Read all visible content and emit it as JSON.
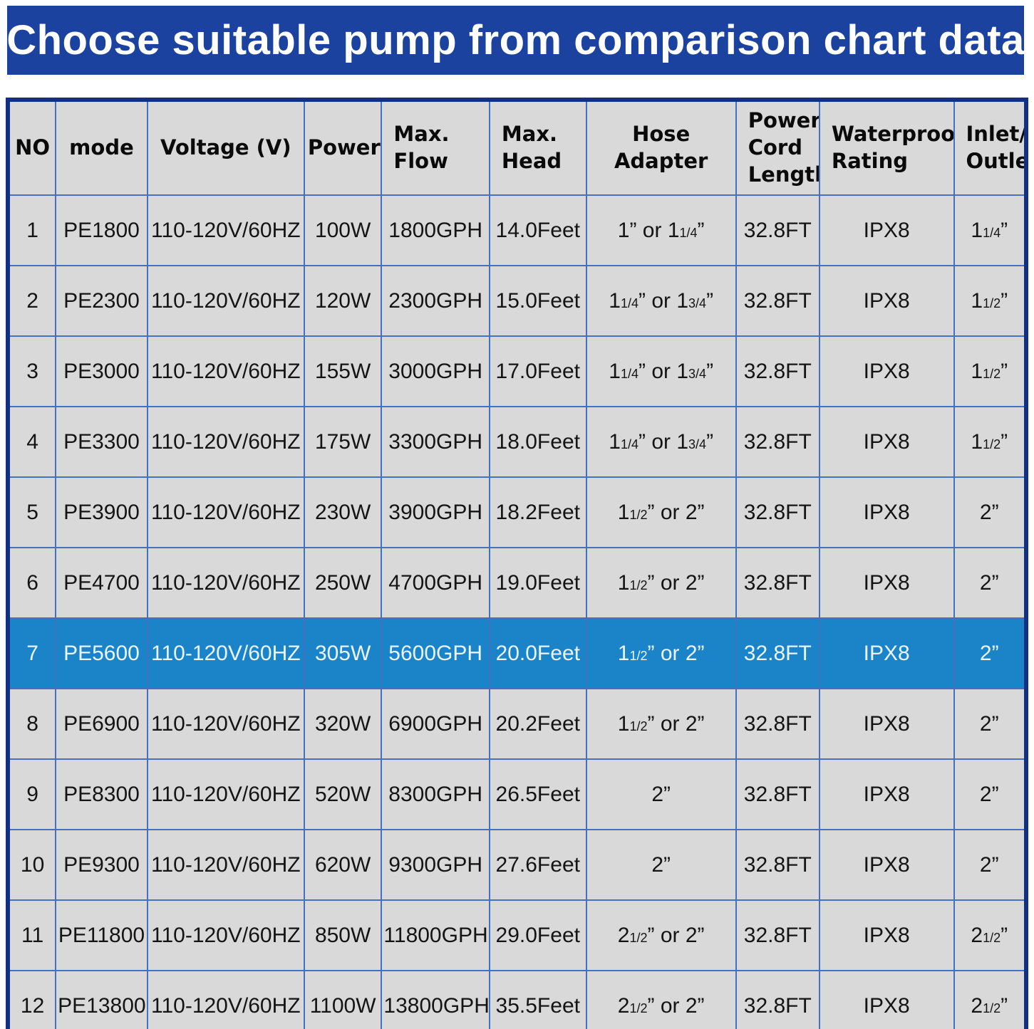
{
  "title": "Choose suitable pump from comparison chart data",
  "colors": {
    "banner_bg": "#1b429e",
    "banner_text": "#ffffff",
    "cell_bg": "#d9d9d9",
    "grid_line": "#4470c0",
    "outer_border": "#122f86",
    "highlight_row_bg": "#1b84c8",
    "highlight_row_text": "#e9f4fc",
    "body_text": "#141414"
  },
  "chart_data": {
    "type": "table",
    "title": "Choose suitable pump from comparison chart data",
    "columns": [
      "NO",
      "mode",
      "Voltage (V)",
      "Power",
      "Max.\nFlow",
      "Max.\nHead",
      "Hose Adapter",
      "Power\nCord\nLength",
      "Waterproof\nRating",
      "Inlet/\nOutlet"
    ],
    "highlighted_row_index": 6,
    "fraction_note": "text in {curly braces} renders as small inline fraction",
    "rows": [
      [
        "1",
        "PE1800",
        "110-120V/60HZ",
        "100W",
        "1800GPH",
        "14.0Feet",
        "1” or 1{1/4}”",
        "32.8FT",
        "IPX8",
        "1{1/4}”"
      ],
      [
        "2",
        "PE2300",
        "110-120V/60HZ",
        "120W",
        "2300GPH",
        "15.0Feet",
        "1{1/4}” or 1{3/4}”",
        "32.8FT",
        "IPX8",
        "1{1/2}”"
      ],
      [
        "3",
        "PE3000",
        "110-120V/60HZ",
        "155W",
        "3000GPH",
        "17.0Feet",
        "1{1/4}” or 1{3/4}”",
        "32.8FT",
        "IPX8",
        "1{1/2}”"
      ],
      [
        "4",
        "PE3300",
        "110-120V/60HZ",
        "175W",
        "3300GPH",
        "18.0Feet",
        "1{1/4}” or 1{3/4}”",
        "32.8FT",
        "IPX8",
        "1{1/2}”"
      ],
      [
        "5",
        "PE3900",
        "110-120V/60HZ",
        "230W",
        "3900GPH",
        "18.2Feet",
        "1{1/2}” or 2”",
        "32.8FT",
        "IPX8",
        "2”"
      ],
      [
        "6",
        "PE4700",
        "110-120V/60HZ",
        "250W",
        "4700GPH",
        "19.0Feet",
        "1{1/2}” or 2”",
        "32.8FT",
        "IPX8",
        "2”"
      ],
      [
        "7",
        "PE5600",
        "110-120V/60HZ",
        "305W",
        "5600GPH",
        "20.0Feet",
        "1{1/2}” or 2”",
        "32.8FT",
        "IPX8",
        "2”"
      ],
      [
        "8",
        "PE6900",
        "110-120V/60HZ",
        "320W",
        "6900GPH",
        "20.2Feet",
        "1{1/2}” or 2”",
        "32.8FT",
        "IPX8",
        "2”"
      ],
      [
        "9",
        "PE8300",
        "110-120V/60HZ",
        "520W",
        "8300GPH",
        "26.5Feet",
        "2”",
        "32.8FT",
        "IPX8",
        "2”"
      ],
      [
        "10",
        "PE9300",
        "110-120V/60HZ",
        "620W",
        "9300GPH",
        "27.6Feet",
        "2”",
        "32.8FT",
        "IPX8",
        "2”"
      ],
      [
        "11",
        "PE11800",
        "110-120V/60HZ",
        "850W",
        "11800GPH",
        "29.0Feet",
        "2{1/2}” or 2”",
        "32.8FT",
        "IPX8",
        "2{1/2}”"
      ],
      [
        "12",
        "PE13800",
        "110-120V/60HZ",
        "1100W",
        "13800GPH",
        "35.5Feet",
        "2{1/2}” or 2”",
        "32.8FT",
        "IPX8",
        "2{1/2}”"
      ]
    ]
  }
}
